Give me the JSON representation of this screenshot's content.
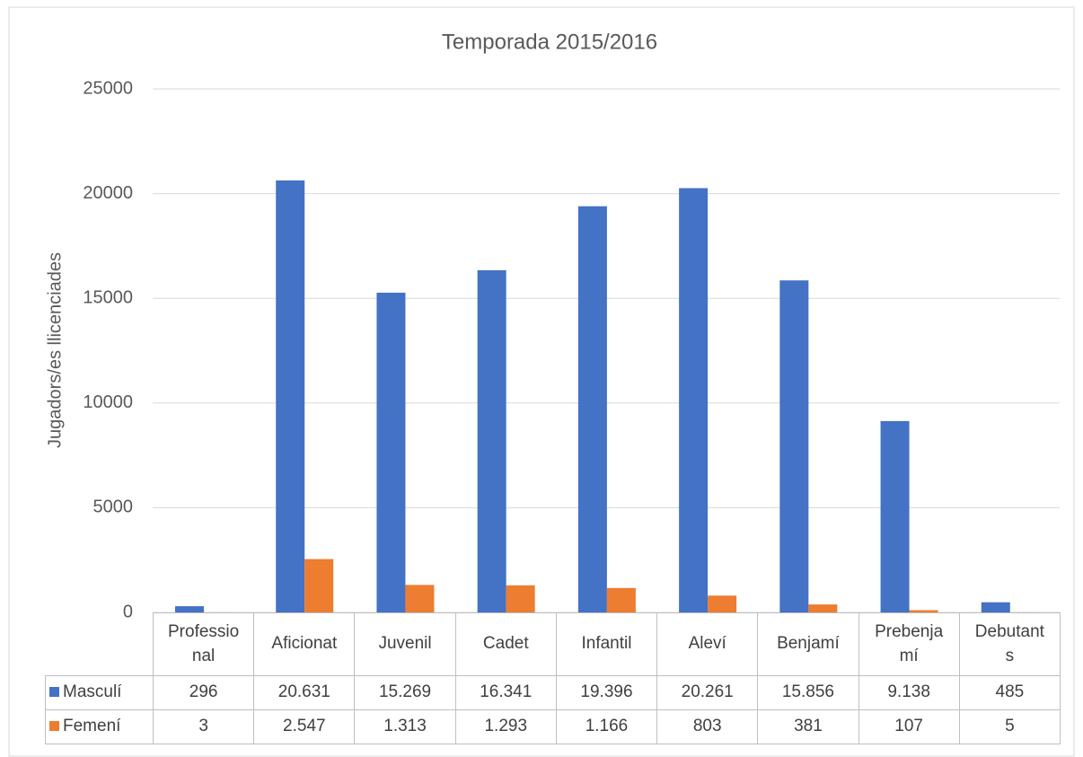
{
  "chart_data": {
    "type": "bar",
    "title": "Temporada 2015/2016",
    "y_label": "Jugadors/es llicenciades",
    "categories": [
      "Professional",
      "Aficionat",
      "Juvenil",
      "Cadet",
      "Infantil",
      "Aleví",
      "Benjamí",
      "Prebenjamí",
      "Debutants"
    ],
    "series": [
      {
        "name": "Masculí",
        "color": "#4472c4",
        "values": [
          296,
          20631,
          15269,
          16341,
          19396,
          20261,
          15856,
          9138,
          485
        ],
        "value_labels": [
          "296",
          "20.631",
          "15.269",
          "16.341",
          "19.396",
          "20.261",
          "15.856",
          "9.138",
          "485"
        ]
      },
      {
        "name": "Femení",
        "color": "#ed7d31",
        "values": [
          3,
          2547,
          1313,
          1293,
          1166,
          803,
          381,
          107,
          5
        ],
        "value_labels": [
          "3",
          "2.547",
          "1.313",
          "1.293",
          "1.166",
          "803",
          "381",
          "107",
          "5"
        ]
      }
    ],
    "ylim": [
      0,
      25000
    ],
    "yticks": [
      0,
      5000,
      10000,
      15000,
      20000,
      25000
    ],
    "grid": true
  }
}
